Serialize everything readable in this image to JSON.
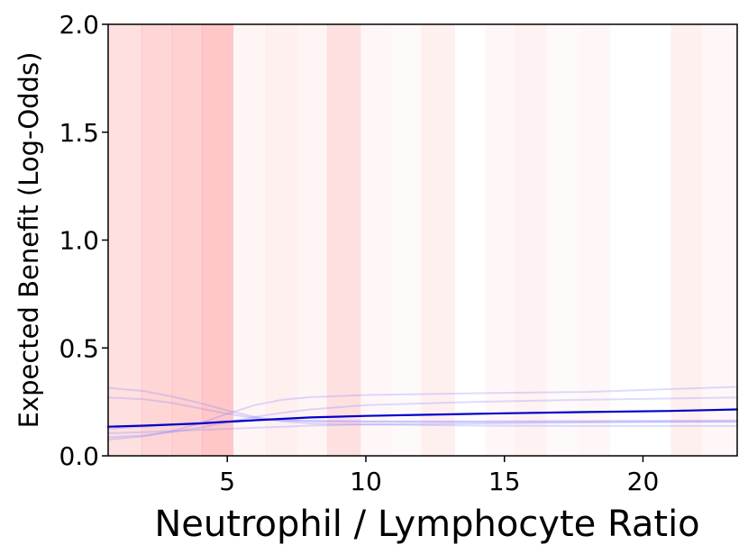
{
  "chart_data": {
    "type": "line",
    "title": "",
    "xlabel": "Neutrophil / Lymphocyte Ratio",
    "ylabel": "Expected Benefit (Log-Odds)",
    "xlim": [
      0.7,
      23.4
    ],
    "ylim": [
      0.0,
      2.0
    ],
    "xticks": [
      5,
      10,
      15,
      20
    ],
    "xtick_labels": [
      "5",
      "10",
      "15",
      "20"
    ],
    "yticks": [
      0.0,
      0.5,
      1.0,
      1.5,
      2.0
    ],
    "ytick_labels": [
      "0.0",
      "0.5",
      "1.0",
      "1.5",
      "2.0"
    ],
    "grid": false,
    "colors": {
      "main_line": "#0000cc",
      "sample_lines": "#8080ff",
      "band": "#ff0000"
    },
    "background_bands": [
      {
        "x0": 0.7,
        "x1": 1.9,
        "opacity": 0.12
      },
      {
        "x0": 1.9,
        "x1": 3.0,
        "opacity": 0.16
      },
      {
        "x0": 3.0,
        "x1": 4.1,
        "opacity": 0.18
      },
      {
        "x0": 4.1,
        "x1": 5.2,
        "opacity": 0.22
      },
      {
        "x0": 5.2,
        "x1": 6.4,
        "opacity": 0.04
      },
      {
        "x0": 6.4,
        "x1": 7.5,
        "opacity": 0.06
      },
      {
        "x0": 7.5,
        "x1": 8.6,
        "opacity": 0.04
      },
      {
        "x0": 8.6,
        "x1": 9.8,
        "opacity": 0.12
      },
      {
        "x0": 9.8,
        "x1": 10.9,
        "opacity": 0.03
      },
      {
        "x0": 10.9,
        "x1": 12.0,
        "opacity": 0.02
      },
      {
        "x0": 12.0,
        "x1": 13.2,
        "opacity": 0.06
      },
      {
        "x0": 13.2,
        "x1": 14.3,
        "opacity": 0.0
      },
      {
        "x0": 14.3,
        "x1": 15.4,
        "opacity": 0.03
      },
      {
        "x0": 15.4,
        "x1": 16.5,
        "opacity": 0.05
      },
      {
        "x0": 16.5,
        "x1": 17.7,
        "opacity": 0.02
      },
      {
        "x0": 17.7,
        "x1": 18.8,
        "opacity": 0.03
      },
      {
        "x0": 18.8,
        "x1": 20.0,
        "opacity": 0.0
      },
      {
        "x0": 20.0,
        "x1": 21.0,
        "opacity": 0.0
      },
      {
        "x0": 21.0,
        "x1": 22.1,
        "opacity": 0.06
      },
      {
        "x0": 22.1,
        "x1": 23.4,
        "opacity": 0.03
      }
    ],
    "series": [
      {
        "role": "main",
        "x": [
          0.7,
          2,
          4,
          5,
          6,
          8,
          10,
          12,
          15,
          18,
          21,
          23.4
        ],
        "y": [
          0.135,
          0.14,
          0.15,
          0.158,
          0.165,
          0.178,
          0.185,
          0.19,
          0.197,
          0.203,
          0.208,
          0.215
        ]
      },
      {
        "role": "sample",
        "x": [
          0.7,
          2,
          3,
          4,
          5,
          6,
          7,
          8,
          10,
          14,
          18,
          23.4
        ],
        "y": [
          0.315,
          0.3,
          0.275,
          0.245,
          0.21,
          0.18,
          0.16,
          0.15,
          0.145,
          0.14,
          0.138,
          0.138
        ]
      },
      {
        "role": "sample",
        "x": [
          0.7,
          2,
          3,
          4,
          5,
          6,
          7,
          8,
          10,
          14,
          18,
          23.4
        ],
        "y": [
          0.27,
          0.262,
          0.245,
          0.22,
          0.195,
          0.175,
          0.165,
          0.16,
          0.158,
          0.157,
          0.157,
          0.158
        ]
      },
      {
        "role": "sample",
        "x": [
          0.7,
          2,
          3,
          4,
          5,
          6,
          7,
          8,
          10,
          14,
          18,
          23.4
        ],
        "y": [
          0.075,
          0.09,
          0.115,
          0.15,
          0.195,
          0.235,
          0.26,
          0.272,
          0.282,
          0.29,
          0.296,
          0.32
        ]
      },
      {
        "role": "sample",
        "x": [
          0.7,
          2,
          3,
          4,
          5,
          6,
          7,
          8,
          10,
          14,
          18,
          23.4
        ],
        "y": [
          0.085,
          0.095,
          0.11,
          0.13,
          0.155,
          0.18,
          0.2,
          0.215,
          0.235,
          0.25,
          0.26,
          0.27
        ]
      },
      {
        "role": "sample",
        "x": [
          0.7,
          2,
          3,
          4,
          5,
          6,
          7,
          8,
          10,
          14,
          18,
          23.4
        ],
        "y": [
          0.105,
          0.11,
          0.115,
          0.12,
          0.125,
          0.13,
          0.135,
          0.14,
          0.145,
          0.15,
          0.155,
          0.16
        ]
      },
      {
        "role": "sample",
        "x": [
          0.7,
          2,
          3,
          4,
          5,
          6,
          7,
          8,
          10,
          14,
          18,
          23.4
        ],
        "y": [
          0.125,
          0.135,
          0.145,
          0.155,
          0.162,
          0.165,
          0.165,
          0.163,
          0.16,
          0.16,
          0.162,
          0.165
        ]
      }
    ]
  }
}
